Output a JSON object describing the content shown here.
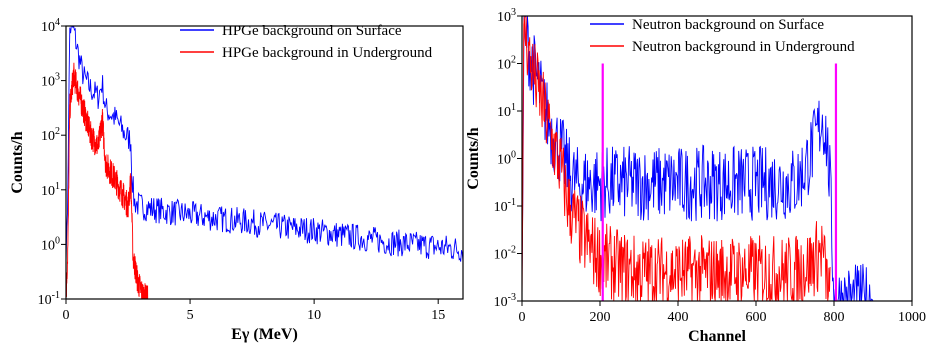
{
  "chart_data": [
    {
      "type": "line",
      "title": "",
      "xlabel": "Eγ (MeV)",
      "ylabel": "Counts/h",
      "xlim": [
        0,
        16
      ],
      "ylim": [
        0.1,
        10000
      ],
      "yscale": "log",
      "x_ticks": [
        0,
        5,
        10,
        15
      ],
      "x_tick_labels": [
        "0",
        "5",
        "10",
        "15"
      ],
      "y_tick_labels": [
        "10-1",
        "100",
        "101",
        "102",
        "103",
        "104"
      ],
      "legend_position": "top-right",
      "series": [
        {
          "name": "HPGe background on Surface",
          "color": "#0000ff",
          "points": [
            [
              0.0,
              0.8
            ],
            [
              0.05,
              1.8
            ],
            [
              0.15,
              9000
            ],
            [
              0.3,
              9000
            ],
            [
              0.5,
              3000
            ],
            [
              0.7,
              1200
            ],
            [
              1.0,
              700
            ],
            [
              1.3,
              500
            ],
            [
              1.46,
              900
            ],
            [
              1.6,
              300
            ],
            [
              2.0,
              200
            ],
            [
              2.4,
              100
            ],
            [
              2.614,
              80
            ],
            [
              2.65,
              20
            ],
            [
              2.75,
              6
            ],
            [
              3.0,
              5
            ],
            [
              4.0,
              4
            ],
            [
              5.0,
              3.5
            ],
            [
              6.0,
              3
            ],
            [
              7.0,
              2.7
            ],
            [
              8.0,
              2.3
            ],
            [
              9.0,
              2
            ],
            [
              10.0,
              1.8
            ],
            [
              11.0,
              1.5
            ],
            [
              12.0,
              1.3
            ],
            [
              13.0,
              1.1
            ],
            [
              14.0,
              1.0
            ],
            [
              15.0,
              0.9
            ],
            [
              16.0,
              0.8
            ]
          ]
        },
        {
          "name": "HPGe background in Underground",
          "color": "#ff0000",
          "points": [
            [
              0.0,
              0.1
            ],
            [
              0.08,
              1.0
            ],
            [
              0.15,
              300
            ],
            [
              0.3,
              1300
            ],
            [
              0.5,
              600
            ],
            [
              0.7,
              300
            ],
            [
              1.0,
              100
            ],
            [
              1.3,
              60
            ],
            [
              1.46,
              200
            ],
            [
              1.6,
              30
            ],
            [
              2.0,
              15
            ],
            [
              2.3,
              8
            ],
            [
              2.5,
              5
            ],
            [
              2.614,
              15
            ],
            [
              2.7,
              0.6
            ],
            [
              2.9,
              0.2
            ],
            [
              3.1,
              0.12
            ],
            [
              3.3,
              0.1
            ]
          ]
        }
      ]
    },
    {
      "type": "line",
      "title": "",
      "xlabel": "Channel",
      "ylabel": "Counts/h",
      "xlim": [
        0,
        1000
      ],
      "ylim": [
        0.001,
        1000
      ],
      "yscale": "log",
      "x_ticks": [
        0,
        200,
        400,
        600,
        800,
        1000
      ],
      "x_tick_labels": [
        "0",
        "200",
        "400",
        "600",
        "800",
        "1000"
      ],
      "y_tick_labels": [
        "10-3",
        "10-2",
        "10-1",
        "100",
        "101",
        "102",
        "103"
      ],
      "legend_position": "top-right",
      "series": [
        {
          "name": "Neutron background on Surface",
          "color": "#0000ff",
          "points": [
            [
              0,
              0.001
            ],
            [
              5,
              900
            ],
            [
              10,
              500
            ],
            [
              20,
              150
            ],
            [
              40,
              40
            ],
            [
              60,
              10
            ],
            [
              80,
              3
            ],
            [
              100,
              1.5
            ],
            [
              120,
              0.5
            ],
            [
              140,
              0.3
            ],
            [
              200,
              0.3
            ],
            [
              300,
              0.3
            ],
            [
              400,
              0.3
            ],
            [
              500,
              0.3
            ],
            [
              600,
              0.3
            ],
            [
              700,
              0.3
            ],
            [
              720,
              0.5
            ],
            [
              750,
              2
            ],
            [
              770,
              8
            ],
            [
              780,
              3
            ],
            [
              790,
              0.3
            ],
            [
              800,
              0.001
            ],
            [
              900,
              0.001
            ]
          ]
        },
        {
          "name": "Neutron background in Underground",
          "color": "#ff0000",
          "points": [
            [
              0,
              0.001
            ],
            [
              5,
              700
            ],
            [
              10,
              400
            ],
            [
              20,
              120
            ],
            [
              40,
              30
            ],
            [
              60,
              8
            ],
            [
              80,
              2
            ],
            [
              100,
              0.6
            ],
            [
              120,
              0.1
            ],
            [
              140,
              0.04
            ],
            [
              160,
              0.02
            ],
            [
              180,
              0.012
            ],
            [
              200,
              0.008
            ],
            [
              250,
              0.005
            ],
            [
              300,
              0.004
            ],
            [
              400,
              0.004
            ],
            [
              500,
              0.004
            ],
            [
              600,
              0.004
            ],
            [
              700,
              0.004
            ],
            [
              740,
              0.006
            ],
            [
              770,
              0.012
            ],
            [
              780,
              0.003
            ],
            [
              790,
              0.001
            ]
          ]
        },
        {
          "name": "",
          "color": "#ff00ff",
          "points": [
            [
              207,
              0.001
            ],
            [
              207,
              100
            ]
          ]
        },
        {
          "name": "",
          "color": "#ff00ff",
          "points": [
            [
              805,
              0.001
            ],
            [
              805,
              100
            ]
          ]
        }
      ]
    }
  ]
}
